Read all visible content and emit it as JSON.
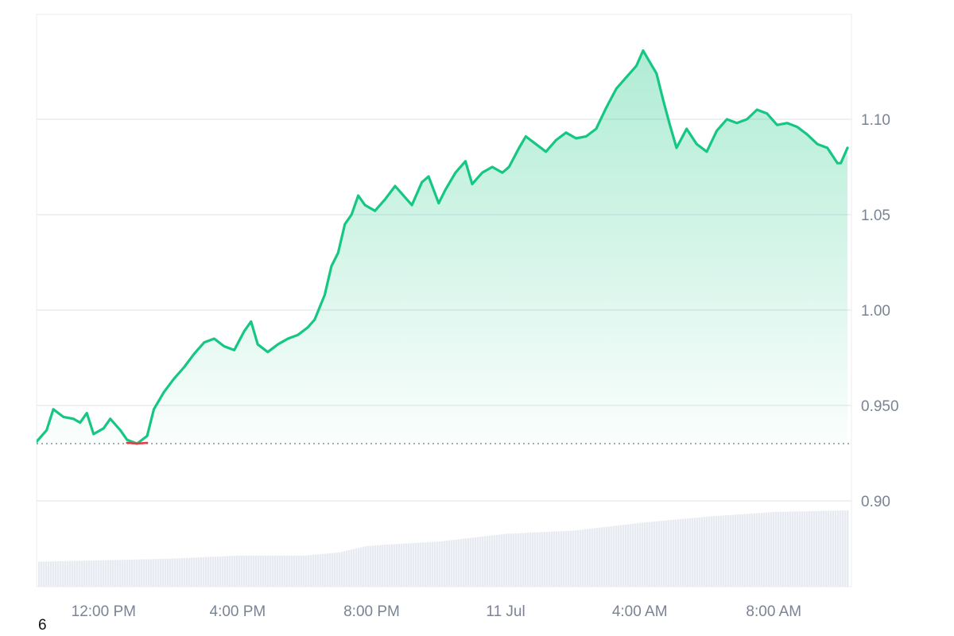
{
  "chart_data": {
    "type": "area",
    "baseline_value": 0.93,
    "ylim": [
      0.855,
      1.155
    ],
    "y_ticks": [
      {
        "value": 0.9,
        "label": "0.90"
      },
      {
        "value": 0.95,
        "label": "0.950"
      },
      {
        "value": 1.0,
        "label": "1.00"
      },
      {
        "value": 1.05,
        "label": "1.05"
      },
      {
        "value": 1.1,
        "label": "1.10"
      }
    ],
    "x_ticks": [
      {
        "value": 2,
        "label": "12:00 PM"
      },
      {
        "value": 6,
        "label": "4:00 PM"
      },
      {
        "value": 10,
        "label": "8:00 PM"
      },
      {
        "value": 14,
        "label": "11 Jul"
      },
      {
        "value": 18,
        "label": "4:00 AM"
      },
      {
        "value": 22,
        "label": "8:00 AM"
      }
    ],
    "xlim": [
      0,
      24.2
    ],
    "series": [
      {
        "values": [
          [
            0.0,
            0.931
          ],
          [
            0.3,
            0.937
          ],
          [
            0.5,
            0.948
          ],
          [
            0.8,
            0.944
          ],
          [
            1.1,
            0.943
          ],
          [
            1.3,
            0.941
          ],
          [
            1.5,
            0.946
          ],
          [
            1.7,
            0.935
          ],
          [
            2.0,
            0.938
          ],
          [
            2.2,
            0.943
          ],
          [
            2.5,
            0.937
          ],
          [
            2.7,
            0.932
          ],
          [
            3.0,
            0.93
          ],
          [
            3.3,
            0.934
          ],
          [
            3.5,
            0.948
          ],
          [
            3.8,
            0.957
          ],
          [
            4.1,
            0.964
          ],
          [
            4.4,
            0.97
          ],
          [
            4.7,
            0.977
          ],
          [
            5.0,
            0.983
          ],
          [
            5.3,
            0.985
          ],
          [
            5.6,
            0.981
          ],
          [
            5.9,
            0.979
          ],
          [
            6.2,
            0.989
          ],
          [
            6.4,
            0.994
          ],
          [
            6.6,
            0.982
          ],
          [
            6.9,
            0.978
          ],
          [
            7.2,
            0.982
          ],
          [
            7.5,
            0.985
          ],
          [
            7.8,
            0.987
          ],
          [
            8.1,
            0.991
          ],
          [
            8.3,
            0.995
          ],
          [
            8.6,
            1.008
          ],
          [
            8.8,
            1.023
          ],
          [
            9.0,
            1.03
          ],
          [
            9.2,
            1.045
          ],
          [
            9.4,
            1.05
          ],
          [
            9.6,
            1.06
          ],
          [
            9.8,
            1.055
          ],
          [
            10.1,
            1.052
          ],
          [
            10.4,
            1.058
          ],
          [
            10.7,
            1.065
          ],
          [
            10.9,
            1.061
          ],
          [
            11.2,
            1.055
          ],
          [
            11.5,
            1.067
          ],
          [
            11.7,
            1.07
          ],
          [
            12.0,
            1.056
          ],
          [
            12.2,
            1.063
          ],
          [
            12.5,
            1.072
          ],
          [
            12.8,
            1.078
          ],
          [
            13.0,
            1.066
          ],
          [
            13.3,
            1.072
          ],
          [
            13.6,
            1.075
          ],
          [
            13.9,
            1.072
          ],
          [
            14.1,
            1.075
          ],
          [
            14.4,
            1.085
          ],
          [
            14.6,
            1.091
          ],
          [
            14.9,
            1.087
          ],
          [
            15.2,
            1.083
          ],
          [
            15.5,
            1.089
          ],
          [
            15.8,
            1.093
          ],
          [
            16.1,
            1.09
          ],
          [
            16.4,
            1.091
          ],
          [
            16.7,
            1.095
          ],
          [
            17.0,
            1.106
          ],
          [
            17.3,
            1.116
          ],
          [
            17.6,
            1.122
          ],
          [
            17.9,
            1.128
          ],
          [
            18.1,
            1.136
          ],
          [
            18.3,
            1.13
          ],
          [
            18.5,
            1.124
          ],
          [
            18.7,
            1.11
          ],
          [
            18.9,
            1.097
          ],
          [
            19.1,
            1.085
          ],
          [
            19.4,
            1.095
          ],
          [
            19.7,
            1.087
          ],
          [
            20.0,
            1.083
          ],
          [
            20.3,
            1.094
          ],
          [
            20.6,
            1.1
          ],
          [
            20.9,
            1.098
          ],
          [
            21.2,
            1.1
          ],
          [
            21.5,
            1.105
          ],
          [
            21.8,
            1.103
          ],
          [
            22.1,
            1.097
          ],
          [
            22.4,
            1.098
          ],
          [
            22.7,
            1.096
          ],
          [
            23.0,
            1.092
          ],
          [
            23.3,
            1.087
          ],
          [
            23.6,
            1.085
          ],
          [
            23.9,
            1.077
          ],
          [
            24.0,
            1.077
          ],
          [
            24.2,
            1.085
          ]
        ]
      }
    ],
    "volume": [
      [
        0.0,
        0.16
      ],
      [
        2.0,
        0.17
      ],
      [
        4.0,
        0.18
      ],
      [
        6.0,
        0.2
      ],
      [
        8.0,
        0.2
      ],
      [
        9.0,
        0.22
      ],
      [
        9.8,
        0.26
      ],
      [
        10.4,
        0.27
      ],
      [
        12.0,
        0.29
      ],
      [
        14.0,
        0.34
      ],
      [
        16.0,
        0.36
      ],
      [
        18.0,
        0.41
      ],
      [
        20.0,
        0.45
      ],
      [
        22.0,
        0.48
      ],
      [
        24.2,
        0.49
      ]
    ]
  },
  "footnote": "6",
  "colors": {
    "line": "#16c784",
    "below_baseline": "#ea3943",
    "fill": "#16c784",
    "grid": "#e9ecf1",
    "volume": "#e7eaf0"
  }
}
